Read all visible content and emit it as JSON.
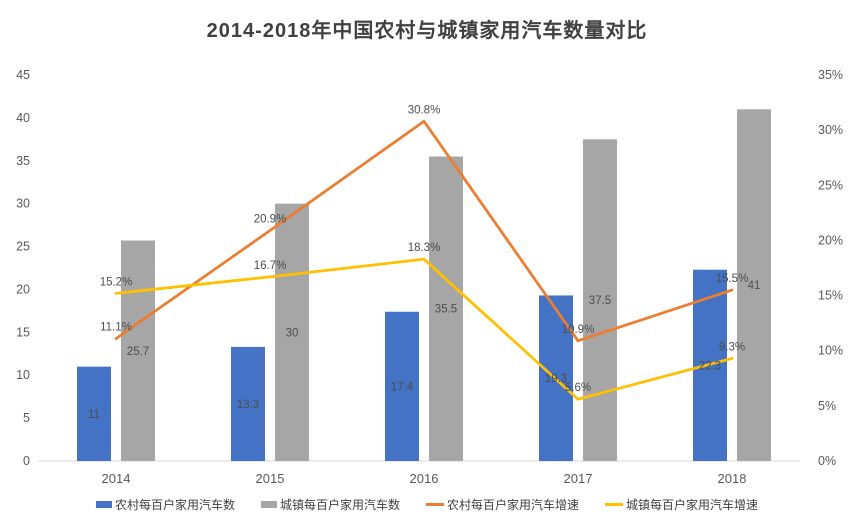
{
  "title": "2014-2018年中国农村与城镇家用汽车数量对比",
  "chart_data": {
    "type": "combo",
    "title": "2014-2018年中国农村与城镇家用汽车数量对比",
    "categories": [
      "2014",
      "2015",
      "2016",
      "2017",
      "2018"
    ],
    "series": [
      {
        "name": "农村每百户家用汽车数",
        "type": "bar",
        "axis": "left",
        "color": "#4472C4",
        "values": [
          11,
          13.3,
          17.4,
          19.3,
          22.3
        ],
        "labels": [
          "11",
          "13.3",
          "17.4",
          "19.3",
          "22.3"
        ]
      },
      {
        "name": "城镇每百户家用汽车数",
        "type": "bar",
        "axis": "left",
        "color": "#A6A6A6",
        "values": [
          25.7,
          30,
          35.5,
          37.5,
          41
        ],
        "labels": [
          "25.7",
          "30",
          "35.5",
          "37.5",
          "41"
        ]
      },
      {
        "name": "农村每百户家用汽车增速",
        "type": "line",
        "axis": "right",
        "color": "#ED7D31",
        "values": [
          11.1,
          20.9,
          30.8,
          10.9,
          15.5
        ],
        "labels": [
          "11.1%",
          "20.9%",
          "30.8%",
          "10.9%",
          "15.5%"
        ]
      },
      {
        "name": "城镇每百户家用汽车增速",
        "type": "line",
        "axis": "right",
        "color": "#FFC000",
        "values": [
          15.2,
          16.7,
          18.3,
          5.6,
          9.3
        ],
        "labels": [
          "15.2%",
          "16.7%",
          "18.3%",
          "5.6%",
          "9.3%"
        ]
      }
    ],
    "left_axis": {
      "min": 0,
      "max": 45,
      "step": 5,
      "ticks": [
        "0",
        "5",
        "10",
        "15",
        "20",
        "25",
        "30",
        "35",
        "40",
        "45"
      ]
    },
    "right_axis": {
      "min": 0,
      "max": 35,
      "step": 5,
      "ticks": [
        "0%",
        "5%",
        "10%",
        "15%",
        "20%",
        "25%",
        "30%",
        "35%"
      ]
    },
    "grid": false,
    "legend_position": "bottom",
    "colors": {
      "title_text": "#404040",
      "axis_text": "#595959",
      "axis_line": "#D9D9D9",
      "data_label": "#4d4d4d",
      "background": "#ffffff"
    }
  }
}
